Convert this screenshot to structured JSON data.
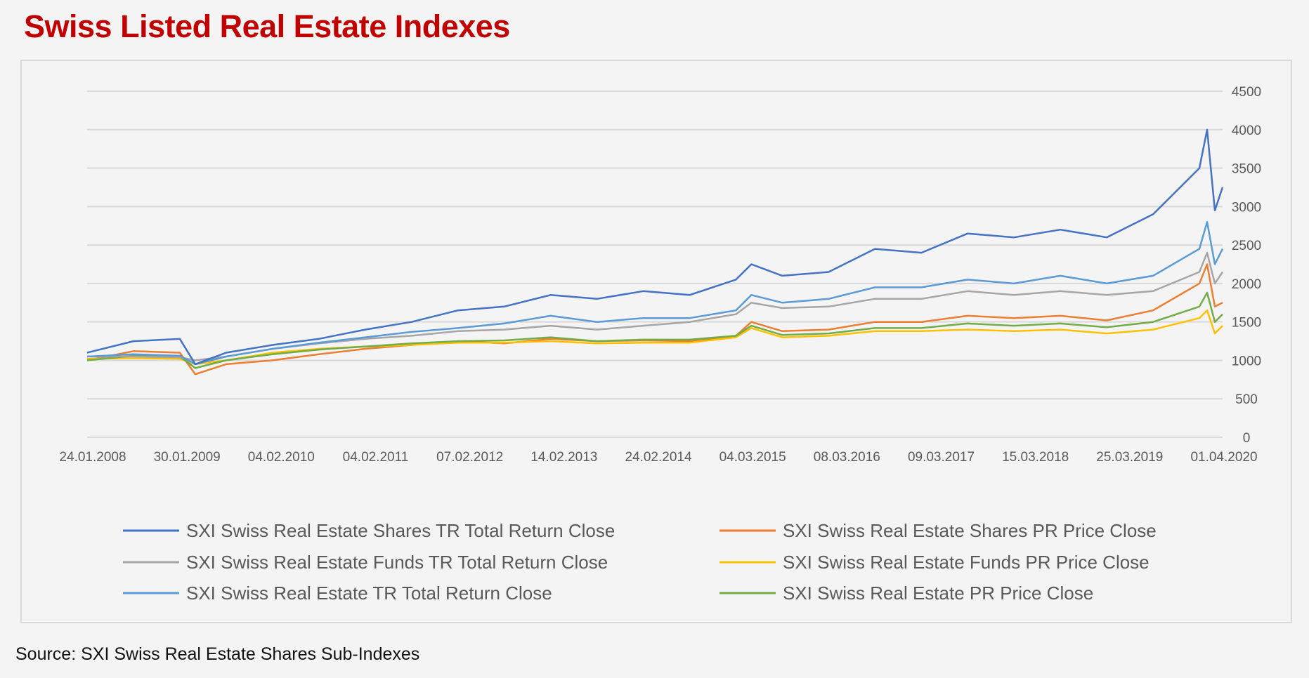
{
  "title": "Swiss Listed Real Estate Indexes",
  "source": "Source: SXI Swiss Real Estate Shares Sub-Indexes",
  "chart_data": {
    "type": "line",
    "title": "",
    "xlabel": "",
    "ylabel": "",
    "ylim": [
      0,
      4500
    ],
    "yticks": [
      0,
      500,
      1000,
      1500,
      2000,
      2500,
      3000,
      3500,
      4000,
      4500
    ],
    "y_axis_side": "right",
    "grid": true,
    "legend_position": "bottom",
    "x_tick_labels": [
      "24.01.2008",
      "30.01.2009",
      "04.02.2010",
      "04.02.2011",
      "07.02.2012",
      "14.02.2013",
      "24.02.2014",
      "04.03.2015",
      "08.03.2016",
      "09.03.2017",
      "15.03.2018",
      "25.03.2019",
      "01.04.2020"
    ],
    "x": [
      "2008-01",
      "2008-07",
      "2009-01",
      "2009-03",
      "2009-07",
      "2010-01",
      "2010-07",
      "2011-01",
      "2011-07",
      "2012-01",
      "2012-07",
      "2013-01",
      "2013-07",
      "2014-01",
      "2014-07",
      "2015-01",
      "2015-03",
      "2015-07",
      "2016-01",
      "2016-07",
      "2017-01",
      "2017-07",
      "2018-01",
      "2018-07",
      "2019-01",
      "2019-07",
      "2020-01",
      "2020-02",
      "2020-03",
      "2020-04"
    ],
    "series": [
      {
        "name": "SXI Swiss Real Estate Shares TR Total Return Close",
        "color": "#4472c4",
        "values": [
          1100,
          1250,
          1280,
          950,
          1100,
          1200,
          1280,
          1400,
          1500,
          1650,
          1700,
          1850,
          1800,
          1900,
          1850,
          2050,
          2250,
          2100,
          2150,
          2450,
          2400,
          2650,
          2600,
          2700,
          2600,
          2900,
          3500,
          4000,
          2950,
          3250
        ]
      },
      {
        "name": "SXI Swiss Real Estate Shares PR Price Close",
        "color": "#ed7d31",
        "values": [
          1000,
          1120,
          1100,
          820,
          950,
          1000,
          1080,
          1150,
          1200,
          1250,
          1220,
          1280,
          1250,
          1260,
          1250,
          1320,
          1500,
          1380,
          1400,
          1500,
          1500,
          1580,
          1550,
          1580,
          1520,
          1650,
          2000,
          2250,
          1700,
          1750
        ]
      },
      {
        "name": "SXI Swiss Real Estate Funds TR Total Return Close",
        "color": "#a5a5a5",
        "values": [
          1050,
          1050,
          1040,
          1000,
          1050,
          1150,
          1220,
          1280,
          1320,
          1380,
          1400,
          1450,
          1400,
          1450,
          1500,
          1600,
          1750,
          1680,
          1700,
          1800,
          1800,
          1900,
          1850,
          1900,
          1850,
          1900,
          2150,
          2400,
          2000,
          2150
        ]
      },
      {
        "name": "SXI Swiss Real Estate Funds PR Price Close",
        "color": "#ffc000",
        "values": [
          1020,
          1030,
          1020,
          950,
          1000,
          1100,
          1150,
          1180,
          1200,
          1230,
          1230,
          1250,
          1220,
          1230,
          1230,
          1300,
          1420,
          1300,
          1320,
          1380,
          1380,
          1400,
          1380,
          1400,
          1350,
          1400,
          1550,
          1650,
          1350,
          1450
        ]
      },
      {
        "name": "SXI Swiss Real Estate TR Total Return Close",
        "color": "#5b9bd5",
        "values": [
          1050,
          1080,
          1060,
          950,
          1050,
          1150,
          1230,
          1300,
          1370,
          1420,
          1480,
          1580,
          1500,
          1550,
          1550,
          1650,
          1850,
          1750,
          1800,
          1950,
          1950,
          2050,
          2000,
          2100,
          2000,
          2100,
          2450,
          2800,
          2250,
          2450
        ]
      },
      {
        "name": "SXI Swiss Real Estate PR Price Close",
        "color": "#70ad47",
        "values": [
          1000,
          1060,
          1050,
          900,
          1000,
          1080,
          1140,
          1180,
          1220,
          1250,
          1260,
          1300,
          1250,
          1270,
          1270,
          1320,
          1450,
          1330,
          1350,
          1420,
          1420,
          1480,
          1450,
          1480,
          1430,
          1500,
          1700,
          1880,
          1500,
          1600
        ]
      }
    ]
  }
}
